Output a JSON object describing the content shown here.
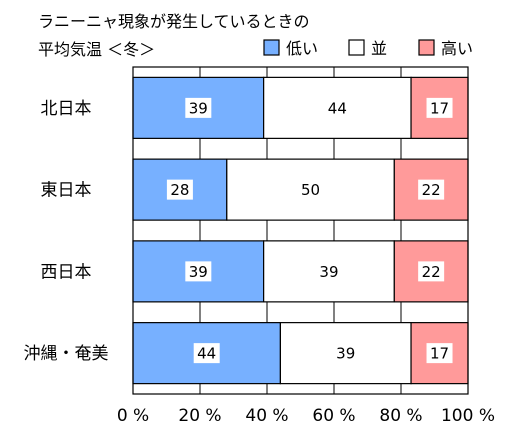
{
  "chart_data": {
    "type": "bar",
    "orientation": "horizontal",
    "stacked": true,
    "title_line1": "ラニーニャ現象が発生しているときの",
    "title_line2": "平均気温 ＜冬＞",
    "categories": [
      "北日本",
      "東日本",
      "西日本",
      "沖縄・奄美"
    ],
    "series": [
      {
        "name": "低い",
        "color": "#77b0ff",
        "values": [
          39,
          28,
          39,
          44
        ]
      },
      {
        "name": "並",
        "color": "#ffffff",
        "values": [
          44,
          50,
          39,
          39
        ]
      },
      {
        "name": "高い",
        "color": "#ff9a9a",
        "values": [
          17,
          22,
          22,
          17
        ]
      }
    ],
    "x_ticks": [
      "0 %",
      "20 %",
      "40 %",
      "60 %",
      "80 %",
      "100 %"
    ],
    "xlim": [
      0,
      100
    ],
    "grid": true,
    "legend_position": "top-right"
  }
}
